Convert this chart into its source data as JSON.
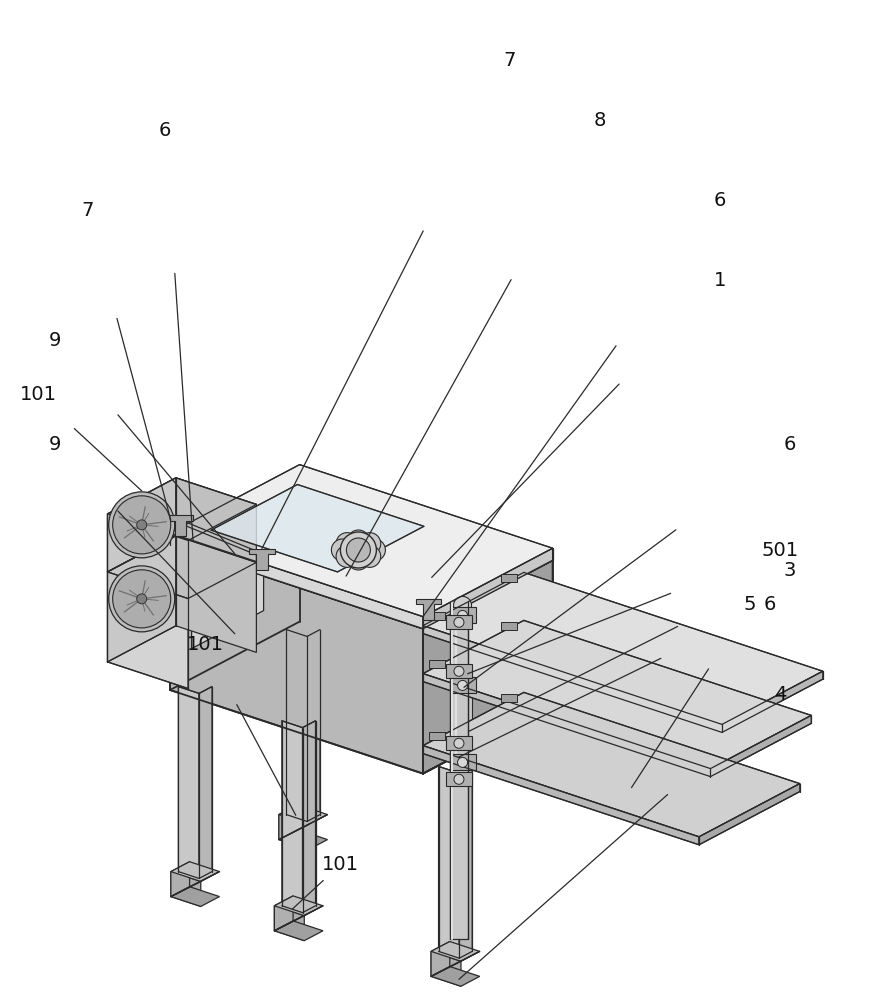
{
  "background_color": "#ffffff",
  "lc": "#2a2a2a",
  "face_top": "#e8e8e8",
  "face_left": "#d0d0d0",
  "face_right": "#b8b8b8",
  "face_dark": "#a0a0a0",
  "fan_face": "#c0c0c0",
  "fan_inner": "#b0b0b0",
  "tray_top": "#d8d8d8",
  "tray_side": "#c0c0c0",
  "rod_color": "#c8c8c8",
  "leg_color": "#c4c4c4",
  "foot_color": "#b0b0b0",
  "figsize": [
    8.7,
    10.0
  ],
  "dpi": 100
}
